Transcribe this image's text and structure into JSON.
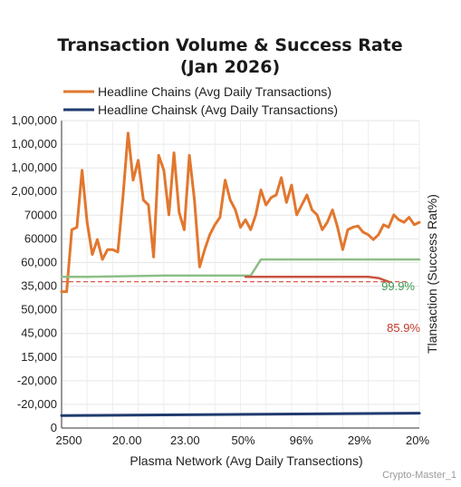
{
  "chart_data": {
    "type": "line",
    "title": "Transaction Volume & Success Rate",
    "subtitle": "(Jan 2026)",
    "xlabel": "Plasma Network (Avg Daily Transections)",
    "ylabel_right": "Tlansaction (Success Rat%)",
    "y_tick_labels": [
      "1,00,000",
      "1,00,000",
      "1,00,000",
      "2,00,000",
      "70000",
      "60000",
      "60,000",
      "35,000",
      "50,000",
      "45,000",
      "15,000",
      "-20,000",
      "-20,000",
      "0"
    ],
    "x_tick_labels": [
      "2500",
      "20.00",
      "23.00",
      "50%",
      "96%",
      "29%",
      "20%"
    ],
    "grid": true,
    "legend_placement": "top-left",
    "series": [
      {
        "name": "Headline Chains (Avg Daily Transactions)",
        "color": "#e2772e",
        "x": [
          0,
          1,
          2,
          3,
          4,
          5,
          6,
          7,
          8,
          9,
          10,
          11,
          12,
          13,
          14,
          15,
          16,
          17,
          18,
          19,
          20,
          21,
          22,
          23,
          24,
          25,
          26,
          27,
          28,
          29,
          30,
          31,
          32,
          33,
          34,
          35,
          36,
          37,
          38,
          39,
          40,
          41,
          42,
          43,
          44,
          45,
          46,
          47,
          48,
          49,
          50,
          51,
          52,
          53,
          54,
          55,
          56,
          57,
          58,
          59,
          60,
          61,
          62,
          63,
          64,
          65,
          66,
          67,
          68,
          69,
          70
        ],
        "y": [
          35000,
          35000,
          60000,
          61000,
          84000,
          63000,
          50000,
          56000,
          48000,
          52000,
          52000,
          51000,
          73000,
          99000,
          80000,
          88000,
          72000,
          70000,
          49000,
          90000,
          84000,
          66000,
          91000,
          67000,
          60000,
          90000,
          72000,
          45000,
          52000,
          58000,
          62000,
          65000,
          80000,
          72000,
          68000,
          61000,
          64000,
          60000,
          66000,
          76000,
          70000,
          73000,
          74000,
          81000,
          71000,
          78000,
          66000,
          70000,
          74000,
          68000,
          66000,
          60000,
          63000,
          68000,
          61000,
          52000,
          60000,
          61000,
          61500,
          59000,
          58000,
          56000,
          58000,
          62000,
          61000,
          66000,
          64000,
          63000,
          65000,
          62000,
          63000
        ]
      },
      {
        "name": "Headline Chainsk (Avg Daily Transactions)",
        "color": "#1f3a6e",
        "x": [
          0,
          70
        ],
        "y": [
          -15000,
          -14000
        ]
      },
      {
        "color": "#8dbf86",
        "x": [
          0,
          5,
          20,
          37,
          39,
          45,
          70
        ],
        "y": [
          41000,
          41000,
          41500,
          41500,
          48000,
          48000,
          48000
        ]
      },
      {
        "color": "#c8533f",
        "x": [
          36,
          60,
          62,
          64
        ],
        "y": [
          41000,
          41000,
          40500,
          39000
        ]
      }
    ],
    "reference_line": {
      "color": "#d9473a",
      "style": "dashed",
      "y": 39000
    },
    "annotations": [
      {
        "text": "99.9%",
        "color": "#3f9a50"
      },
      {
        "text": "85.9%",
        "color": "#c0392b"
      }
    ],
    "ylim": [
      -20000,
      104000
    ],
    "xlim": [
      0,
      70
    ]
  },
  "watermark": "Crypto-Master_1"
}
